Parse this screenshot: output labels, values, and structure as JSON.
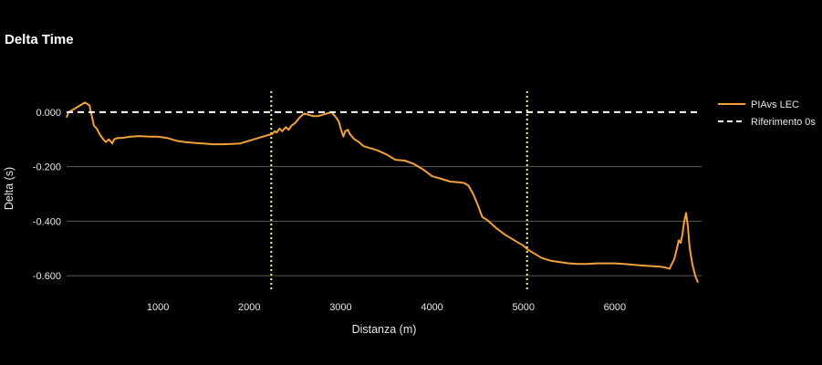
{
  "chart_data": {
    "type": "line",
    "title": "Delta Time",
    "xlabel": "Distanza (m)",
    "ylabel": "Delta (s)",
    "xlim": [
      0,
      6950
    ],
    "ylim": [
      -0.67,
      0.11
    ],
    "xticks": [
      1000,
      2000,
      3000,
      4000,
      5000,
      6000
    ],
    "yticks": [
      0.0,
      -0.2,
      -0.4,
      -0.6
    ],
    "ytick_labels": [
      "0.000",
      "-0.200",
      "-0.400",
      "-0.600"
    ],
    "grid": "horizontal",
    "legend": "right",
    "series": [
      {
        "name": "PIAvs LEC",
        "color": "#f2a13a",
        "style": "solid",
        "x": [
          0,
          20,
          50,
          100,
          150,
          200,
          250,
          280,
          300,
          330,
          360,
          400,
          430,
          460,
          500,
          520,
          560,
          600,
          700,
          800,
          900,
          1000,
          1100,
          1200,
          1300,
          1400,
          1500,
          1600,
          1700,
          1800,
          1900,
          2000,
          2100,
          2200,
          2250,
          2280,
          2300,
          2330,
          2360,
          2400,
          2430,
          2460,
          2500,
          2550,
          2600,
          2650,
          2700,
          2750,
          2800,
          2850,
          2900,
          2950,
          2980,
          3000,
          3030,
          3050,
          3080,
          3100,
          3150,
          3200,
          3250,
          3300,
          3400,
          3500,
          3600,
          3700,
          3800,
          3900,
          4000,
          4100,
          4200,
          4300,
          4350,
          4400,
          4450,
          4500,
          4550,
          4600,
          4650,
          4700,
          4800,
          4900,
          5000,
          5050,
          5100,
          5200,
          5300,
          5400,
          5500,
          5600,
          5700,
          5800,
          5900,
          6000,
          6100,
          6200,
          6300,
          6400,
          6500,
          6550,
          6600,
          6620,
          6650,
          6680,
          6700,
          6720,
          6740,
          6760,
          6780,
          6800,
          6820,
          6850,
          6880,
          6910
        ],
        "y": [
          -0.02,
          0.0,
          0.005,
          0.015,
          0.025,
          0.035,
          0.025,
          -0.02,
          -0.05,
          -0.06,
          -0.08,
          -0.1,
          -0.11,
          -0.1,
          -0.115,
          -0.1,
          -0.095,
          -0.095,
          -0.09,
          -0.088,
          -0.09,
          -0.09,
          -0.095,
          -0.105,
          -0.11,
          -0.113,
          -0.115,
          -0.118,
          -0.118,
          -0.117,
          -0.115,
          -0.105,
          -0.095,
          -0.085,
          -0.08,
          -0.07,
          -0.075,
          -0.06,
          -0.07,
          -0.055,
          -0.065,
          -0.05,
          -0.04,
          -0.02,
          -0.005,
          -0.01,
          -0.015,
          -0.015,
          -0.01,
          -0.005,
          0.0,
          -0.02,
          -0.035,
          -0.06,
          -0.09,
          -0.07,
          -0.065,
          -0.08,
          -0.1,
          -0.11,
          -0.125,
          -0.13,
          -0.14,
          -0.155,
          -0.175,
          -0.178,
          -0.19,
          -0.21,
          -0.235,
          -0.245,
          -0.255,
          -0.258,
          -0.26,
          -0.27,
          -0.3,
          -0.34,
          -0.385,
          -0.395,
          -0.41,
          -0.425,
          -0.45,
          -0.47,
          -0.49,
          -0.505,
          -0.515,
          -0.535,
          -0.545,
          -0.55,
          -0.555,
          -0.557,
          -0.557,
          -0.555,
          -0.555,
          -0.555,
          -0.557,
          -0.56,
          -0.563,
          -0.565,
          -0.567,
          -0.57,
          -0.575,
          -0.56,
          -0.54,
          -0.5,
          -0.47,
          -0.48,
          -0.45,
          -0.4,
          -0.37,
          -0.42,
          -0.5,
          -0.56,
          -0.6,
          -0.625
        ]
      },
      {
        "name": "Riferimento 0s",
        "color": "#ffffff",
        "style": "dashed",
        "x": [
          0,
          6950
        ],
        "y": [
          0.0,
          0.0
        ]
      }
    ],
    "vlines": [
      {
        "x": 2240,
        "color": "#f4f38a",
        "style": "dotted"
      },
      {
        "x": 5040,
        "color": "#f4f38a",
        "style": "dotted"
      }
    ]
  }
}
